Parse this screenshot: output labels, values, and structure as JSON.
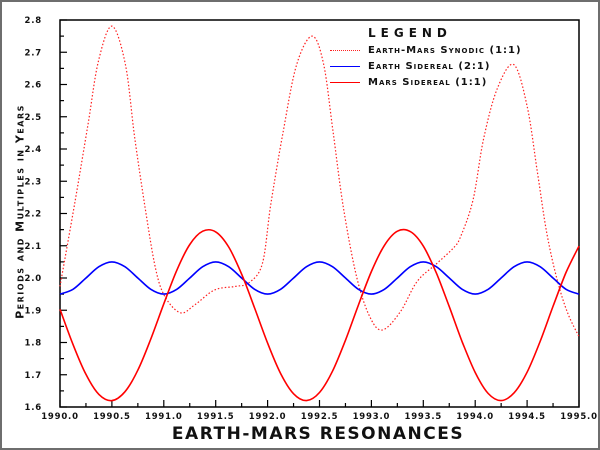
{
  "chart_data": {
    "type": "line",
    "title": "",
    "xlabel": "EARTH-MARS RESONANCES",
    "ylabel": "Periods and Multiples in Years",
    "xlim": [
      1990.0,
      1995.0
    ],
    "ylim": [
      1.6,
      2.8
    ],
    "xticks": [
      "1990.0",
      "1990.5",
      "1991.0",
      "1991.5",
      "1992.0",
      "1992.5",
      "1993.0",
      "1993.5",
      "1994.0",
      "1994.5",
      "1995.0"
    ],
    "yticks": [
      "1.6",
      "1.7",
      "1.8",
      "1.9",
      "2.0",
      "2.1",
      "2.2",
      "2.3",
      "2.4",
      "2.5",
      "2.6",
      "2.7",
      "2.8"
    ],
    "grid": false,
    "legend": {
      "title": "LEGEND",
      "placement": "top-right"
    },
    "series": [
      {
        "name": "Earth-Mars Synodic (1:1)",
        "color": "#ff2020",
        "style": "dotted",
        "x": [
          1990.0,
          1990.145,
          1990.27,
          1990.37,
          1990.5,
          1990.63,
          1990.72,
          1990.82,
          1990.92,
          1991.01,
          1991.16,
          1991.3,
          1991.49,
          1991.69,
          1991.82,
          1991.95,
          1992.03,
          1992.15,
          1992.28,
          1992.43,
          1992.54,
          1992.63,
          1992.73,
          1992.86,
          1992.99,
          1993.11,
          1993.28,
          1993.44,
          1993.63,
          1993.79,
          1993.86,
          1993.98,
          1994.08,
          1994.21,
          1994.37,
          1994.5,
          1994.6,
          1994.69,
          1994.79,
          1994.89,
          1995.0
        ],
        "y": [
          1.974,
          2.238,
          2.476,
          2.672,
          2.781,
          2.662,
          2.435,
          2.218,
          2.03,
          1.943,
          1.892,
          1.917,
          1.963,
          1.974,
          1.985,
          2.045,
          2.227,
          2.454,
          2.662,
          2.75,
          2.662,
          2.455,
          2.218,
          2.0,
          1.876,
          1.839,
          1.896,
          1.989,
          2.045,
          2.093,
          2.129,
          2.243,
          2.43,
          2.585,
          2.662,
          2.533,
          2.326,
          2.139,
          1.994,
          1.892,
          1.818
        ]
      },
      {
        "name": "Earth Sidereal (2:1)",
        "color": "#0000ff",
        "style": "solid",
        "x_start": 1990.0,
        "x_step": 0.125,
        "y": [
          1.95,
          1.965,
          2.0,
          2.035,
          2.05,
          2.035,
          2.0,
          1.965,
          1.95,
          1.965,
          2.0,
          2.035,
          2.05,
          2.035,
          2.0,
          1.965,
          1.95,
          1.965,
          2.0,
          2.035,
          2.05,
          2.035,
          2.0,
          1.965,
          1.95,
          1.965,
          2.0,
          2.035,
          2.05,
          2.035,
          2.0,
          1.965,
          1.95,
          1.965,
          2.0,
          2.035,
          2.05,
          2.035,
          2.0,
          1.965,
          1.95
        ]
      },
      {
        "name": "Mars Sidereal (1:1)",
        "color": "#ff0000",
        "style": "solid",
        "x_start": 1990.0,
        "x_step": 0.125,
        "y": [
          1.903,
          1.794,
          1.701,
          1.639,
          1.62,
          1.647,
          1.714,
          1.811,
          1.92,
          2.024,
          2.104,
          2.145,
          2.143,
          2.096,
          2.012,
          1.907,
          1.798,
          1.704,
          1.641,
          1.62,
          1.645,
          1.711,
          1.807,
          1.916,
          2.02,
          2.101,
          2.145,
          2.144,
          2.099,
          2.016,
          1.911,
          1.802,
          1.707,
          1.642,
          1.62,
          1.644,
          1.708,
          1.803,
          1.912,
          2.017,
          2.099
        ]
      }
    ]
  }
}
